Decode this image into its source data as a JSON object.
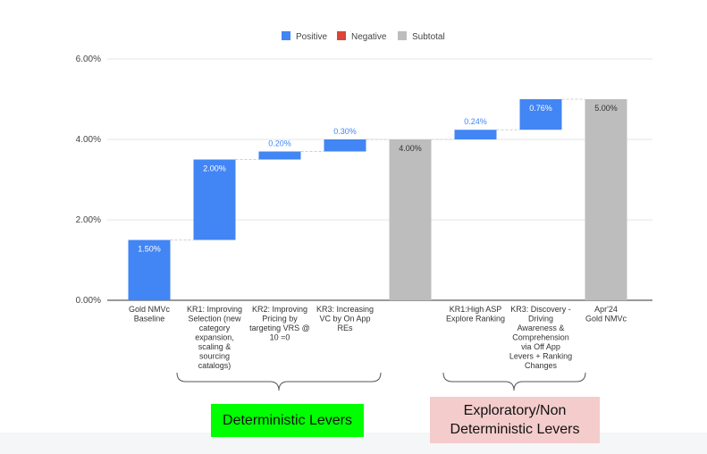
{
  "chart_data": {
    "type": "waterfall",
    "title": "",
    "xlabel": "",
    "ylabel": "",
    "ylim": [
      0,
      6
    ],
    "yticks": [
      "0.00%",
      "2.00%",
      "4.00%",
      "6.00%"
    ],
    "legend": [
      {
        "key": "positive",
        "label": "Positive",
        "color": "#4285f4"
      },
      {
        "key": "negative",
        "label": "Negative",
        "color": "#db4437"
      },
      {
        "key": "subtotal",
        "label": "Subtotal",
        "color": "#bdbdbd"
      }
    ],
    "bars": [
      {
        "label_lines": [
          "Gold NMVc",
          "Baseline"
        ],
        "start": 0,
        "end": 1.5,
        "kind": "positive",
        "value_label": "1.50%"
      },
      {
        "label_lines": [
          "KR1: Improving",
          "Selection (new",
          "category",
          "expansion,",
          "scaling &",
          "sourcing",
          "catalogs)"
        ],
        "start": 1.5,
        "end": 3.5,
        "kind": "positive",
        "value_label": "2.00%"
      },
      {
        "label_lines": [
          "KR2: Improving",
          "Pricing by",
          "targeting VRS @",
          "10 =0"
        ],
        "start": 3.5,
        "end": 3.7,
        "kind": "positive",
        "value_label": "0.20%"
      },
      {
        "label_lines": [
          "KR3: Increasing",
          "VC by On App",
          "REs"
        ],
        "start": 3.7,
        "end": 4.0,
        "kind": "positive",
        "value_label": "0.30%"
      },
      {
        "label_lines": [],
        "start": 0,
        "end": 4.0,
        "kind": "subtotal",
        "value_label": "4.00%"
      },
      {
        "label_lines": [
          "KR1:High ASP",
          "Explore Ranking"
        ],
        "start": 4.0,
        "end": 4.24,
        "kind": "positive",
        "value_label": "0.24%"
      },
      {
        "label_lines": [
          "KR3: Discovery -",
          "Driving",
          "Awareness &",
          "Comprehension",
          "via Off App",
          "Levers + Ranking",
          "Changes"
        ],
        "start": 4.24,
        "end": 5.0,
        "kind": "positive",
        "value_label": "0.76%"
      },
      {
        "label_lines": [
          "Apr'24",
          "Gold NMVc"
        ],
        "start": 0,
        "end": 5.0,
        "kind": "subtotal",
        "value_label": "5.00%"
      }
    ]
  },
  "annotations": {
    "deterministic": {
      "text": "Deterministic Levers",
      "bg": "#00ff00"
    },
    "exploratory": {
      "text_lines": [
        "Exploratory/Non",
        "Deterministic Levers"
      ],
      "bg": "#f4cccc"
    }
  }
}
